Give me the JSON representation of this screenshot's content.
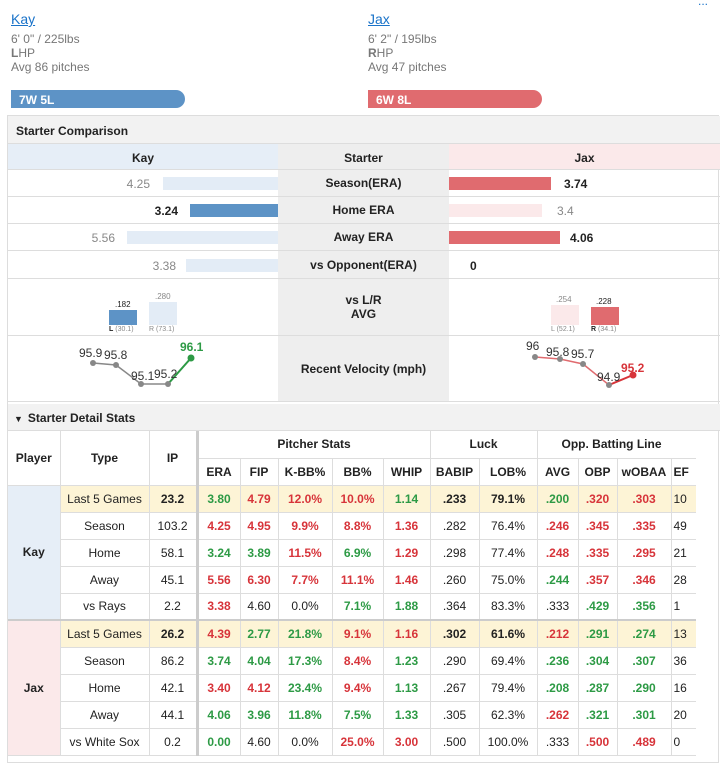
{
  "header": {
    "corner_link": "...",
    "kay": {
      "name": "Kay",
      "size": "6' 0\" / 225lbs",
      "hand_letter": "L",
      "hand_rest": "HP",
      "avg": "Avg 86 pitches",
      "record": "7W 5L"
    },
    "jax": {
      "name": "Jax",
      "size": "6' 2\" / 195lbs",
      "hand_letter": "R",
      "hand_rest": "HP",
      "avg": "Avg 47 pitches",
      "record": "6W 8L"
    }
  },
  "comparison": {
    "title": "Starter Comparison",
    "col_left": "Kay",
    "col_mid": "Starter",
    "col_right": "Jax",
    "rows": [
      {
        "label": "Season(ERA)",
        "kay": "4.25",
        "jax": "3.74"
      },
      {
        "label": "Home ERA",
        "kay": "3.24",
        "jax": "3.4"
      },
      {
        "label": "Away ERA",
        "kay": "5.56",
        "jax": "4.06"
      },
      {
        "label": "vs Opponent(ERA)",
        "kay": "3.38",
        "jax": "0"
      }
    ],
    "lr": {
      "label_line1": "vs L/R",
      "label_line2": "AVG",
      "kay": {
        "l_val": ".182",
        "r_val": ".280",
        "l_lbl": "L",
        "l_sub": "(30.1)",
        "r_lbl": "R",
        "r_sub": "(73.1)"
      },
      "jax": {
        "l_val": ".254",
        "r_val": ".228",
        "l_lbl": "L",
        "l_sub": "(52.1)",
        "r_lbl": "R",
        "r_sub": "(34.1)"
      }
    },
    "velocity": {
      "label": "Recent Velocity (mph)",
      "kay": [
        "95.9",
        "95.8",
        "95.1",
        "95.2",
        "96.1"
      ],
      "jax": [
        "96",
        "95.8",
        "95.7",
        "94.9",
        "95.2"
      ]
    }
  },
  "detail": {
    "title": "Starter Detail Stats",
    "headers": {
      "player": "Player",
      "type": "Type",
      "ip": "IP",
      "pitcher": "Pitcher Stats",
      "luck": "Luck",
      "opp": "Opp. Batting Line",
      "sub": [
        "ERA",
        "FIP",
        "K-BB%",
        "BB%",
        "WHIP",
        "BABIP",
        "LOB%",
        "AVG",
        "OBP",
        "wOBAA",
        "EF"
      ]
    },
    "players": [
      {
        "name": "Kay",
        "rows": [
          {
            "type": "Last 5 Games",
            "ip": "23.2",
            "vals": [
              "3.80",
              "4.79",
              "12.0%",
              "10.0%",
              "1.14",
              ".233",
              "79.1%",
              ".200",
              ".320",
              ".303",
              "10"
            ],
            "c": [
              "g",
              "r",
              "r",
              "r",
              "g",
              "k",
              "k",
              "g",
              "r",
              "r",
              "k"
            ]
          },
          {
            "type": "Season",
            "ip": "103.2",
            "vals": [
              "4.25",
              "4.95",
              "9.9%",
              "8.8%",
              "1.36",
              ".282",
              "76.4%",
              ".246",
              ".345",
              ".335",
              "49"
            ],
            "c": [
              "r",
              "r",
              "r",
              "r",
              "r",
              "k",
              "k",
              "r",
              "r",
              "r",
              "k"
            ]
          },
          {
            "type": "Home",
            "ip": "58.1",
            "vals": [
              "3.24",
              "3.89",
              "11.5%",
              "6.9%",
              "1.29",
              ".298",
              "77.4%",
              ".248",
              ".335",
              ".295",
              "21"
            ],
            "c": [
              "g",
              "g",
              "r",
              "g",
              "r",
              "k",
              "k",
              "r",
              "r",
              "r",
              "k"
            ]
          },
          {
            "type": "Away",
            "ip": "45.1",
            "vals": [
              "5.56",
              "6.30",
              "7.7%",
              "11.1%",
              "1.46",
              ".260",
              "75.0%",
              ".244",
              ".357",
              ".346",
              "28"
            ],
            "c": [
              "r",
              "r",
              "r",
              "r",
              "r",
              "k",
              "k",
              "g",
              "r",
              "r",
              "k"
            ]
          },
          {
            "type": "vs Rays",
            "ip": "2.2",
            "vals": [
              "3.38",
              "4.60",
              "0.0%",
              "7.1%",
              "1.88",
              ".364",
              "83.3%",
              ".333",
              ".429",
              ".356",
              "1"
            ],
            "c": [
              "r",
              "k",
              "k",
              "g",
              "g",
              "k",
              "k",
              "k",
              "g",
              "g",
              "k"
            ]
          }
        ]
      },
      {
        "name": "Jax",
        "rows": [
          {
            "type": "Last 5 Games",
            "ip": "26.2",
            "vals": [
              "4.39",
              "2.77",
              "21.8%",
              "9.1%",
              "1.16",
              ".302",
              "61.6%",
              ".212",
              ".291",
              ".274",
              "13"
            ],
            "c": [
              "r",
              "g",
              "g",
              "r",
              "r",
              "k",
              "k",
              "r",
              "g",
              "g",
              "k"
            ]
          },
          {
            "type": "Season",
            "ip": "86.2",
            "vals": [
              "3.74",
              "4.04",
              "17.3%",
              "8.4%",
              "1.23",
              ".290",
              "69.4%",
              ".236",
              ".304",
              ".307",
              "36"
            ],
            "c": [
              "g",
              "g",
              "g",
              "r",
              "g",
              "k",
              "k",
              "g",
              "g",
              "g",
              "k"
            ]
          },
          {
            "type": "Home",
            "ip": "42.1",
            "vals": [
              "3.40",
              "4.12",
              "23.4%",
              "9.4%",
              "1.13",
              ".267",
              "79.4%",
              ".208",
              ".287",
              ".290",
              "16"
            ],
            "c": [
              "r",
              "r",
              "g",
              "r",
              "g",
              "k",
              "k",
              "g",
              "g",
              "g",
              "k"
            ]
          },
          {
            "type": "Away",
            "ip": "44.1",
            "vals": [
              "4.06",
              "3.96",
              "11.8%",
              "7.5%",
              "1.33",
              ".305",
              "62.3%",
              ".262",
              ".321",
              ".301",
              "20"
            ],
            "c": [
              "g",
              "g",
              "g",
              "g",
              "g",
              "k",
              "k",
              "r",
              "g",
              "g",
              "k"
            ]
          },
          {
            "type": "vs White Sox",
            "ip": "0.2",
            "vals": [
              "0.00",
              "4.60",
              "0.0%",
              "25.0%",
              "3.00",
              ".500",
              "100.0%",
              ".333",
              ".500",
              ".489",
              "0"
            ],
            "c": [
              "g",
              "k",
              "k",
              "r",
              "r",
              "k",
              "k",
              "k",
              "r",
              "r",
              "k"
            ]
          }
        ]
      }
    ]
  },
  "colors": {
    "kay": "#5d93c6",
    "jax": "#e06b6f",
    "good": "#2d9a45",
    "bad": "#d7343a"
  }
}
